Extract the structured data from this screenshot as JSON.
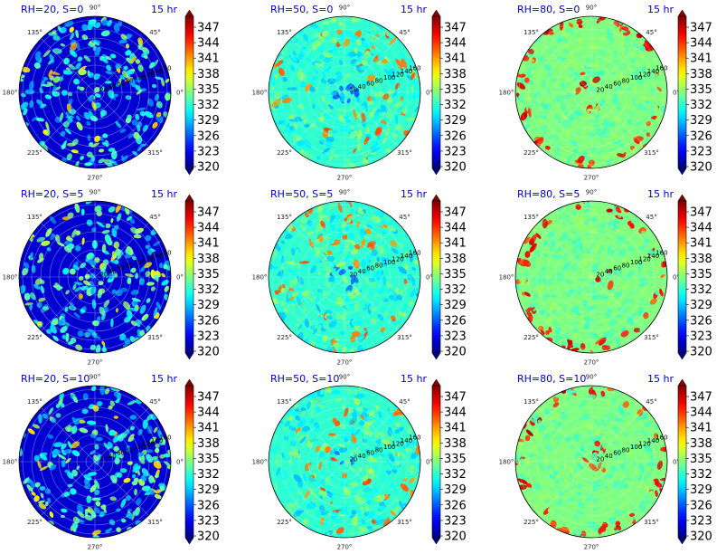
{
  "figure": {
    "panels": [
      {
        "id": "rh20-s0",
        "title": "RH=20, S=0",
        "time": "15 hr",
        "base": 0.22,
        "noise": 0.55,
        "dark": true
      },
      {
        "id": "rh50-s0",
        "title": "RH=50, S=0",
        "time": "15 hr",
        "base": 0.42,
        "noise": 0.18,
        "dark": false
      },
      {
        "id": "rh80-s0",
        "title": "RH=80, S=0",
        "time": "15 hr",
        "base": 0.5,
        "noise": 0.12,
        "dark": false,
        "hot": true
      },
      {
        "id": "rh20-s5",
        "title": "RH=20, S=5",
        "time": "15 hr",
        "base": 0.22,
        "noise": 0.55,
        "dark": true
      },
      {
        "id": "rh50-s5",
        "title": "RH=50, S=5",
        "time": "15 hr",
        "base": 0.42,
        "noise": 0.18,
        "dark": false
      },
      {
        "id": "rh80-s5",
        "title": "RH=80, S=5",
        "time": "15 hr",
        "base": 0.5,
        "noise": 0.12,
        "dark": false,
        "hot": true
      },
      {
        "id": "rh20-s10",
        "title": "RH=20, S=10",
        "time": "15 hr",
        "base": 0.22,
        "noise": 0.55,
        "dark": true
      },
      {
        "id": "rh50-s10",
        "title": "RH=50, S=10",
        "time": "15 hr",
        "base": 0.42,
        "noise": 0.18,
        "dark": false
      },
      {
        "id": "rh80-s10",
        "title": "RH=80, S=10",
        "time": "15 hr",
        "base": 0.5,
        "noise": 0.12,
        "dark": false,
        "hot": true
      }
    ],
    "angle_labels": [
      "0°",
      "45°",
      "90°",
      "135°",
      "180°",
      "225°",
      "270°",
      "315°"
    ],
    "radial_labels_dark": [
      "20",
      "40",
      "60",
      "80",
      "100",
      "120",
      "140",
      "160"
    ],
    "radial_labels_mid": [
      "20",
      "40",
      "60",
      "80",
      "100",
      "120",
      "140",
      "160"
    ],
    "colorbar_ticks": [
      "347",
      "344",
      "341",
      "338",
      "335",
      "332",
      "329",
      "326",
      "323",
      "320"
    ]
  },
  "chart_data": {
    "type": "heatmap",
    "subtype": "polar",
    "grid": true,
    "colormap": "jet",
    "color_range": [
      320,
      350
    ],
    "colorbar_ticks": [
      347,
      344,
      341,
      338,
      335,
      332,
      329,
      326,
      323,
      320
    ],
    "angular_ticks_deg": [
      0,
      45,
      90,
      135,
      180,
      225,
      270,
      315
    ],
    "radial_ticks": [
      20,
      40,
      60,
      80,
      100,
      120,
      140,
      160
    ],
    "panels": [
      {
        "title": "RH=20, S=0",
        "time": "15 hr",
        "relative_humidity": 20,
        "S": 0
      },
      {
        "title": "RH=50, S=0",
        "time": "15 hr",
        "relative_humidity": 50,
        "S": 0
      },
      {
        "title": "RH=80, S=0",
        "time": "15 hr",
        "relative_humidity": 80,
        "S": 0
      },
      {
        "title": "RH=20, S=5",
        "time": "15 hr",
        "relative_humidity": 20,
        "S": 5
      },
      {
        "title": "RH=50, S=5",
        "time": "15 hr",
        "relative_humidity": 50,
        "S": 5
      },
      {
        "title": "RH=80, S=5",
        "time": "15 hr",
        "relative_humidity": 80,
        "S": 5
      },
      {
        "title": "RH=20, S=10",
        "time": "15 hr",
        "relative_humidity": 20,
        "S": 10
      },
      {
        "title": "RH=50, S=10",
        "time": "15 hr",
        "relative_humidity": 50,
        "S": 10
      },
      {
        "title": "RH=80, S=10",
        "time": "15 hr",
        "relative_humidity": 80,
        "S": 10
      }
    ]
  }
}
